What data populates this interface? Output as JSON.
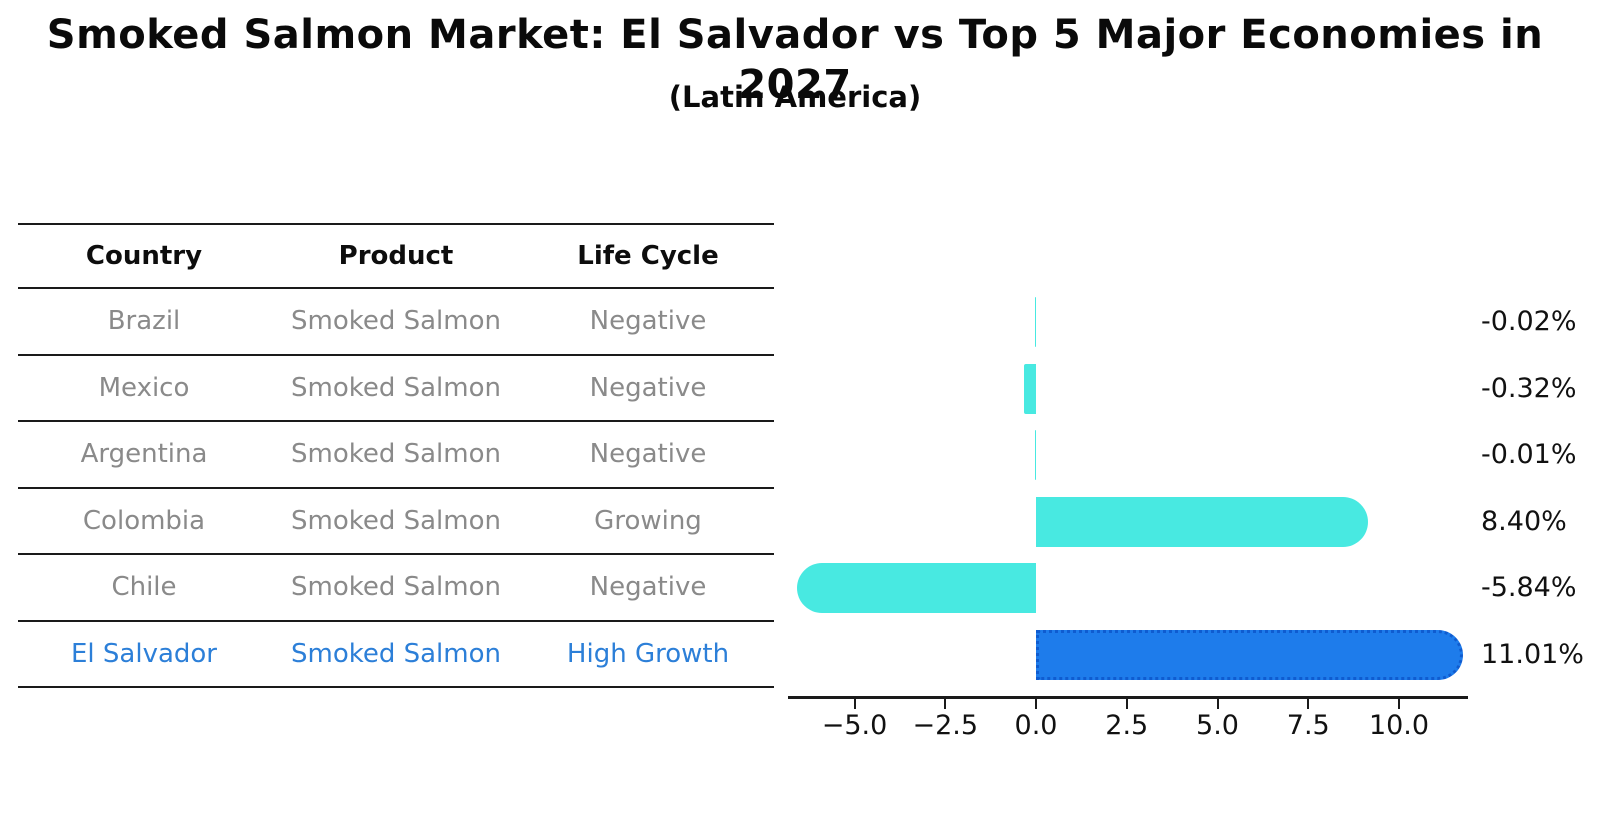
{
  "title": "Smoked Salmon Market: El Salvador vs Top 5 Major Economies in 2027",
  "subtitle": "(Latin America)",
  "table": {
    "headers": [
      "Country",
      "Product",
      "Life Cycle"
    ],
    "rows": [
      {
        "country": "Brazil",
        "product": "Smoked Salmon",
        "life_cycle": "Negative",
        "highlight": false
      },
      {
        "country": "Mexico",
        "product": "Smoked Salmon",
        "life_cycle": "Negative",
        "highlight": false
      },
      {
        "country": "Argentina",
        "product": "Smoked Salmon",
        "life_cycle": "Negative",
        "highlight": false
      },
      {
        "country": "Colombia",
        "product": "Smoked Salmon",
        "life_cycle": "Growing",
        "highlight": false
      },
      {
        "country": "Chile",
        "product": "Smoked Salmon",
        "life_cycle": "Negative",
        "highlight": false
      },
      {
        "country": "El Salvador",
        "product": "Smoked Salmon",
        "life_cycle": "High Growth",
        "highlight": true
      }
    ]
  },
  "chart_data": {
    "type": "bar",
    "orientation": "horizontal",
    "title": "Smoked Salmon Market: El Salvador vs Top 5 Major Economies in 2027 (Latin America)",
    "categories": [
      "Brazil",
      "Mexico",
      "Argentina",
      "Colombia",
      "Chile",
      "El Salvador"
    ],
    "values": [
      -0.02,
      -0.32,
      -0.01,
      8.4,
      -5.84,
      11.01
    ],
    "value_labels": [
      "-0.02%",
      "-0.32%",
      "-0.01%",
      "8.40%",
      "-5.84%",
      "11.01%"
    ],
    "units": "percent",
    "x_ticks": [
      -5.0,
      -2.5,
      0.0,
      2.5,
      5.0,
      7.5,
      10.0
    ],
    "x_tick_labels": [
      "−5.0",
      "−2.5",
      "0.0",
      "2.5",
      "5.0",
      "7.5",
      "10.0"
    ],
    "xlim": [
      -6.8,
      11.9
    ],
    "grid": false,
    "legend": null,
    "highlight_index": 5,
    "bar_color_default": "#48e9e1",
    "bar_color_highlight": "#1e7ceb",
    "highlight_border_color": "#0f5cd0",
    "highlight_text_color": "#2c7fd8",
    "muted_text_color": "#8a8a8a"
  }
}
